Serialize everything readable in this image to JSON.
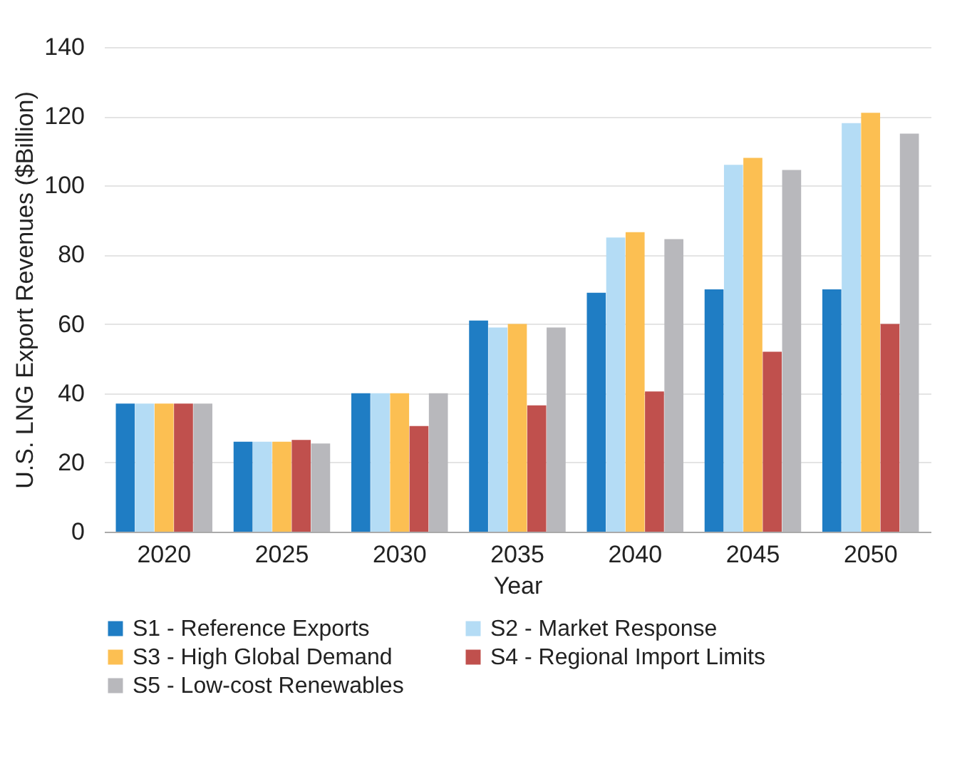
{
  "chart_data": {
    "type": "bar",
    "xlabel": "Year",
    "ylabel": "U.S. LNG Export Revenues ($Billion)",
    "categories": [
      "2020",
      "2025",
      "2030",
      "2035",
      "2040",
      "2045",
      "2050"
    ],
    "series": [
      {
        "name": "S1 - Reference Exports",
        "color": "#1f7dc4",
        "values": [
          37,
          26,
          40,
          61,
          69,
          70,
          70
        ]
      },
      {
        "name": "S2 - Market Response",
        "color": "#b4dcf5",
        "values": [
          37,
          26,
          40,
          59,
          85,
          106,
          118
        ]
      },
      {
        "name": "S3 - High Global Demand",
        "color": "#fcbf52",
        "values": [
          37,
          26,
          40,
          60,
          86.5,
          108,
          121
        ]
      },
      {
        "name": "S4 - Regional Import Limits",
        "color": "#c0504d",
        "values": [
          37,
          26.5,
          30.5,
          36.5,
          40.5,
          52,
          60
        ]
      },
      {
        "name": "S5 - Low-cost Renewables",
        "color": "#b8b8bc",
        "values": [
          37,
          25.5,
          40,
          59,
          84.5,
          104.5,
          115
        ]
      }
    ],
    "ylim": [
      0,
      140
    ],
    "yticks": [
      0,
      20,
      40,
      60,
      80,
      100,
      120,
      140
    ],
    "grid": "y",
    "legend": "bottom"
  }
}
